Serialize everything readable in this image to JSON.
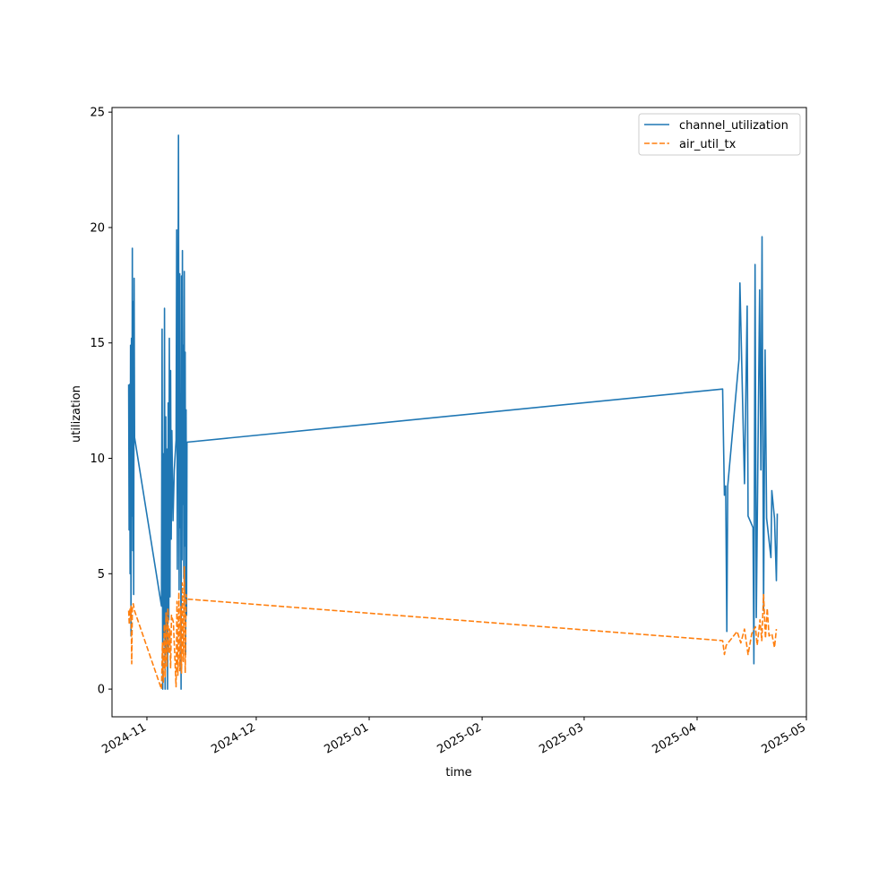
{
  "chart_data": {
    "type": "line",
    "xlabel": "time",
    "ylabel": "utilization",
    "x_type": "date",
    "xlim": [
      "2024-10-22T10:00",
      "2025-05-01T00:00"
    ],
    "ylim": [
      -1.2,
      25.2
    ],
    "x_ticks": [
      "2024-11",
      "2024-12",
      "2025-01",
      "2025-02",
      "2025-03",
      "2025-04",
      "2025-05"
    ],
    "y_ticks": [
      0,
      5,
      10,
      15,
      20,
      25
    ],
    "grid": false,
    "legend_position": "top-right",
    "series": [
      {
        "name": "channel_utilization",
        "color": "#1f77b4",
        "dash": "solid",
        "points": [
          [
            "2024-10-27T00:00",
            13.2
          ],
          [
            "2024-10-27T03:00",
            6.9
          ],
          [
            "2024-10-27T06:00",
            13.2
          ],
          [
            "2024-10-27T09:00",
            5.0
          ],
          [
            "2024-10-27T12:00",
            14.9
          ],
          [
            "2024-10-27T15:00",
            2.3
          ],
          [
            "2024-10-27T18:00",
            15.2
          ],
          [
            "2024-10-27T21:00",
            7.5
          ],
          [
            "2024-10-28T00:00",
            19.1
          ],
          [
            "2024-10-28T03:00",
            6.0
          ],
          [
            "2024-10-28T06:00",
            16.8
          ],
          [
            "2024-10-28T09:00",
            4.1
          ],
          [
            "2024-10-28T12:00",
            17.8
          ],
          [
            "2024-10-28T15:00",
            10.9
          ],
          [
            "2024-11-05T00:00",
            3.6
          ],
          [
            "2024-11-05T04:00",
            15.6
          ],
          [
            "2024-11-05T08:00",
            0.0
          ],
          [
            "2024-11-05T12:00",
            10.2
          ],
          [
            "2024-11-05T16:00",
            2.3
          ],
          [
            "2024-11-05T20:00",
            16.5
          ],
          [
            "2024-11-06T00:00",
            0.0
          ],
          [
            "2024-11-06T04:00",
            11.8
          ],
          [
            "2024-11-06T08:00",
            1.6
          ],
          [
            "2024-11-06T12:00",
            10.4
          ],
          [
            "2024-11-06T16:00",
            0.0
          ],
          [
            "2024-11-06T20:00",
            12.4
          ],
          [
            "2024-11-07T00:00",
            3.0
          ],
          [
            "2024-11-07T04:00",
            15.2
          ],
          [
            "2024-11-07T08:00",
            4.0
          ],
          [
            "2024-11-07T12:00",
            13.8
          ],
          [
            "2024-11-07T16:00",
            6.5
          ],
          [
            "2024-11-07T20:00",
            11.2
          ],
          [
            "2024-11-08T04:00",
            7.3
          ],
          [
            "2024-11-08T12:00",
            9.5
          ],
          [
            "2024-11-09T00:00",
            10.8
          ],
          [
            "2024-11-09T04:00",
            19.9
          ],
          [
            "2024-11-09T08:00",
            5.2
          ],
          [
            "2024-11-09T12:00",
            13.5
          ],
          [
            "2024-11-09T16:00",
            24.0
          ],
          [
            "2024-11-09T20:00",
            4.3
          ],
          [
            "2024-11-10T00:00",
            18.0
          ],
          [
            "2024-11-10T03:00",
            7.0
          ],
          [
            "2024-11-10T06:00",
            12.8
          ],
          [
            "2024-11-10T09:00",
            0.0
          ],
          [
            "2024-11-10T12:00",
            17.9
          ],
          [
            "2024-11-10T15:00",
            5.6
          ],
          [
            "2024-11-10T18:00",
            19.0
          ],
          [
            "2024-11-10T21:00",
            8.0
          ],
          [
            "2024-11-11T00:00",
            14.9
          ],
          [
            "2024-11-11T03:00",
            4.8
          ],
          [
            "2024-11-11T06:00",
            18.1
          ],
          [
            "2024-11-11T09:00",
            6.2
          ],
          [
            "2024-11-11T12:00",
            14.6
          ],
          [
            "2024-11-11T15:00",
            1.5
          ],
          [
            "2024-11-11T18:00",
            12.1
          ],
          [
            "2024-11-11T21:00",
            3.2
          ],
          [
            "2024-11-12T00:00",
            10.7
          ],
          [
            "2025-04-08T00:00",
            13.0
          ],
          [
            "2025-04-08T12:00",
            8.4
          ],
          [
            "2025-04-08T20:00",
            8.8
          ],
          [
            "2025-04-09T04:00",
            2.5
          ],
          [
            "2025-04-09T10:00",
            8.8
          ],
          [
            "2025-04-12T12:00",
            14.3
          ],
          [
            "2025-04-12T18:00",
            17.6
          ],
          [
            "2025-04-14T00:00",
            8.9
          ],
          [
            "2025-04-14T18:00",
            16.6
          ],
          [
            "2025-04-15T00:00",
            7.5
          ],
          [
            "2025-04-16T08:00",
            7.0
          ],
          [
            "2025-04-16T14:00",
            1.1
          ],
          [
            "2025-04-16T22:00",
            18.4
          ],
          [
            "2025-04-17T06:00",
            3.1
          ],
          [
            "2025-04-18T04:00",
            17.3
          ],
          [
            "2025-04-18T12:00",
            9.5
          ],
          [
            "2025-04-18T20:00",
            19.6
          ],
          [
            "2025-04-19T06:00",
            3.4
          ],
          [
            "2025-04-19T16:00",
            14.7
          ],
          [
            "2025-04-20T02:00",
            7.4
          ],
          [
            "2025-04-21T06:00",
            5.7
          ],
          [
            "2025-04-21T12:00",
            8.6
          ],
          [
            "2025-04-22T06:00",
            7.4
          ],
          [
            "2025-04-22T18:00",
            4.7
          ],
          [
            "2025-04-23T00:00",
            7.6
          ]
        ]
      },
      {
        "name": "air_util_tx",
        "color": "#ff7f0e",
        "dash": "dashed",
        "points": [
          [
            "2024-10-27T00:00",
            3.4
          ],
          [
            "2024-10-27T04:00",
            2.8
          ],
          [
            "2024-10-27T08:00",
            3.5
          ],
          [
            "2024-10-27T12:00",
            3.1
          ],
          [
            "2024-10-27T16:00",
            3.6
          ],
          [
            "2024-10-27T20:00",
            1.1
          ],
          [
            "2024-10-28T00:00",
            3.5
          ],
          [
            "2024-10-28T06:00",
            3.7
          ],
          [
            "2024-10-28T14:00",
            3.4
          ],
          [
            "2024-11-05T00:00",
            0.0
          ],
          [
            "2024-11-05T06:00",
            2.0
          ],
          [
            "2024-11-05T12:00",
            0.3
          ],
          [
            "2024-11-05T18:00",
            2.8
          ],
          [
            "2024-11-06T00:00",
            0.5
          ],
          [
            "2024-11-06T06:00",
            3.3
          ],
          [
            "2024-11-06T12:00",
            1.0
          ],
          [
            "2024-11-06T18:00",
            3.5
          ],
          [
            "2024-11-07T00:00",
            1.6
          ],
          [
            "2024-11-07T06:00",
            2.6
          ],
          [
            "2024-11-07T12:00",
            0.9
          ],
          [
            "2024-11-07T18:00",
            3.2
          ],
          [
            "2024-11-08T06:00",
            2.9
          ],
          [
            "2024-11-09T00:00",
            0.1
          ],
          [
            "2024-11-09T06:00",
            3.8
          ],
          [
            "2024-11-09T12:00",
            0.6
          ],
          [
            "2024-11-09T18:00",
            4.2
          ],
          [
            "2024-11-10T00:00",
            0.8
          ],
          [
            "2024-11-10T06:00",
            3.6
          ],
          [
            "2024-11-10T12:00",
            0.7
          ],
          [
            "2024-11-10T18:00",
            4.6
          ],
          [
            "2024-11-11T00:00",
            1.2
          ],
          [
            "2024-11-11T06:00",
            5.3
          ],
          [
            "2024-11-11T12:00",
            0.7
          ],
          [
            "2024-11-11T18:00",
            4.1
          ],
          [
            "2024-11-12T00:00",
            3.9
          ],
          [
            "2025-04-08T00:00",
            2.1
          ],
          [
            "2025-04-08T12:00",
            1.5
          ],
          [
            "2025-04-09T00:00",
            1.9
          ],
          [
            "2025-04-12T00:00",
            2.5
          ],
          [
            "2025-04-13T00:00",
            2.0
          ],
          [
            "2025-04-14T00:00",
            2.6
          ],
          [
            "2025-04-15T00:00",
            1.5
          ],
          [
            "2025-04-16T00:00",
            2.4
          ],
          [
            "2025-04-17T00:00",
            2.7
          ],
          [
            "2025-04-17T12:00",
            1.9
          ],
          [
            "2025-04-18T06:00",
            3.0
          ],
          [
            "2025-04-18T18:00",
            2.1
          ],
          [
            "2025-04-19T06:00",
            4.1
          ],
          [
            "2025-04-19T18:00",
            2.2
          ],
          [
            "2025-04-20T06:00",
            3.5
          ],
          [
            "2025-04-20T18:00",
            2.3
          ],
          [
            "2025-04-21T12:00",
            2.4
          ],
          [
            "2025-04-22T06:00",
            1.8
          ],
          [
            "2025-04-22T18:00",
            2.6
          ]
        ]
      }
    ]
  }
}
